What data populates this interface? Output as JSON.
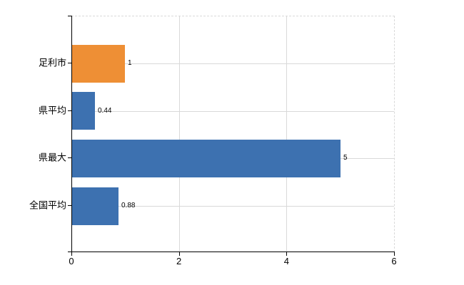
{
  "chart_data": {
    "type": "bar",
    "orientation": "horizontal",
    "title": "",
    "xlabel": "",
    "ylabel": "",
    "categories": [
      "足利市",
      "県平均",
      "県最大",
      "全国平均"
    ],
    "values": [
      1,
      0.44,
      5,
      0.88
    ],
    "value_labels": [
      "1",
      "0.44",
      "5",
      "0.88"
    ],
    "bar_colors": [
      "#EE8F35",
      "#3D71B0",
      "#3D71B0",
      "#3D71B0"
    ],
    "xlim": [
      0,
      6
    ],
    "x_ticks": [
      0,
      2,
      4,
      6
    ],
    "x_tick_labels": [
      "0",
      "2",
      "4",
      "6"
    ],
    "grid": true,
    "legend": false,
    "colors": {
      "gridline": "#d9d9d9",
      "dashed_border": "#d9d9d9",
      "axis": "#000000",
      "text": "#000000",
      "background": "#ffffff"
    }
  }
}
